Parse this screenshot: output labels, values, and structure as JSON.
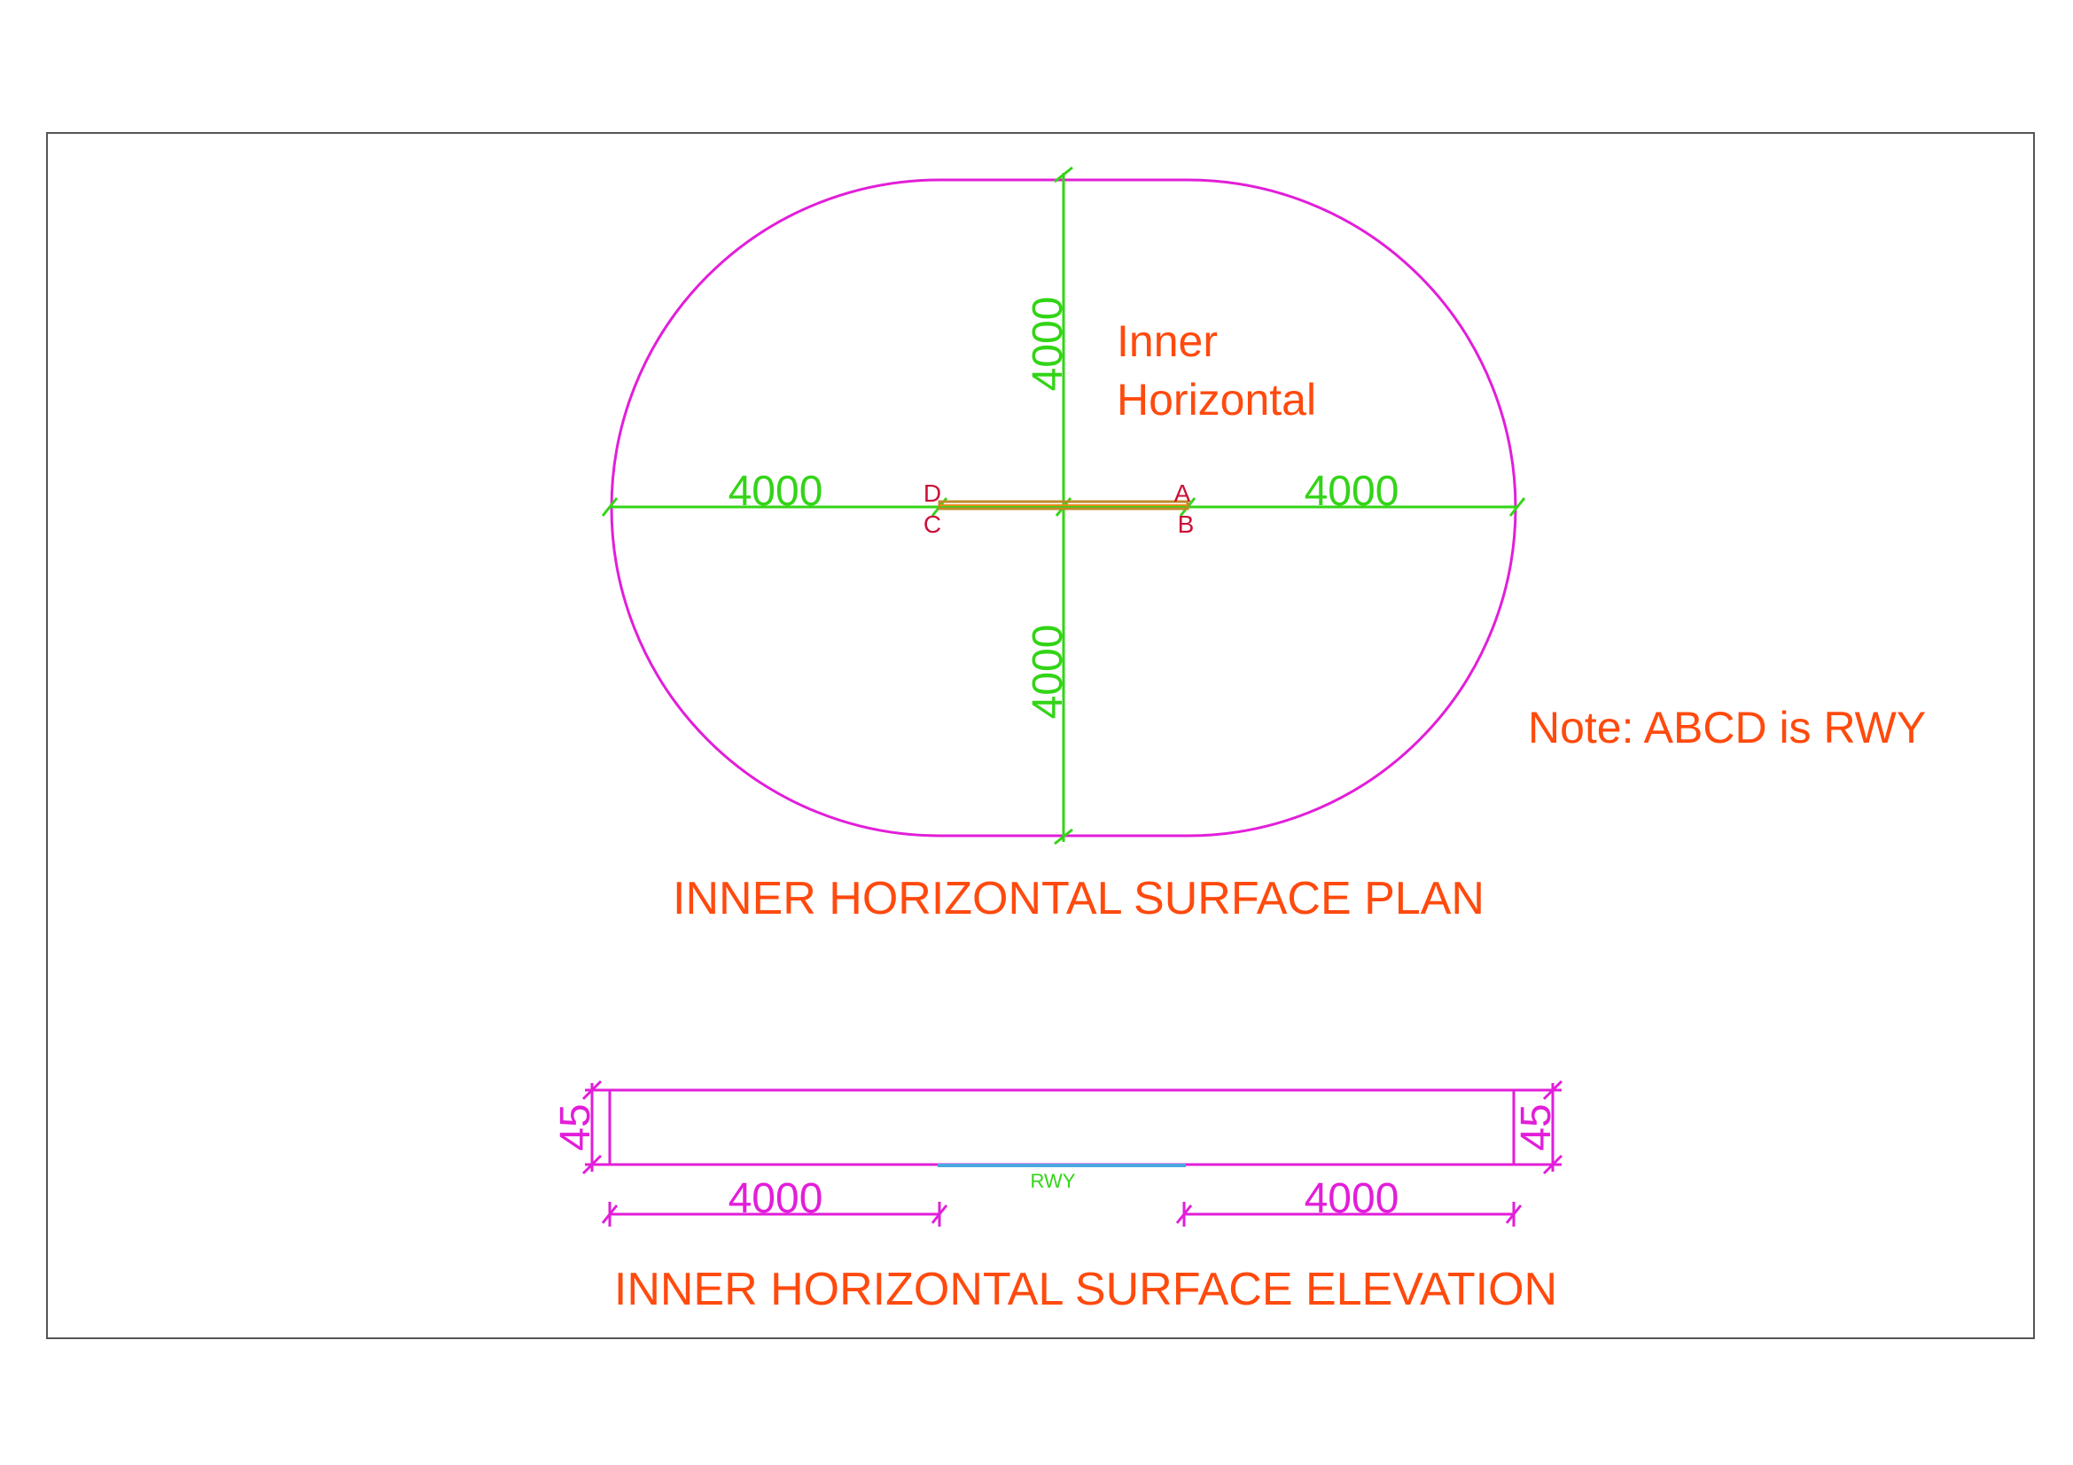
{
  "plan": {
    "label_inner_line1": "Inner",
    "label_inner_line2": "Horizontal",
    "dim_left": "4000",
    "dim_right": "4000",
    "dim_top": "4000",
    "dim_bottom": "4000",
    "point_a": "A",
    "point_b": "B",
    "point_c": "C",
    "point_d": "D",
    "note": "Note: ABCD is RWY",
    "title": "INNER HORIZONTAL SURFACE PLAN"
  },
  "elevation": {
    "dim_height_left": "45",
    "dim_height_right": "45",
    "dim_left": "4000",
    "dim_right": "4000",
    "rwy_label": "RWY",
    "title": "INNER HORIZONTAL SURFACE ELEVATION"
  },
  "colors": {
    "outline": "#e21ed9",
    "dimension": "#33d417",
    "text": "#ff4a0e",
    "points": "#cc1037",
    "runway_plan": "#c08a2a",
    "runway_elevation": "#4aa8e0",
    "frame": "#555555"
  }
}
